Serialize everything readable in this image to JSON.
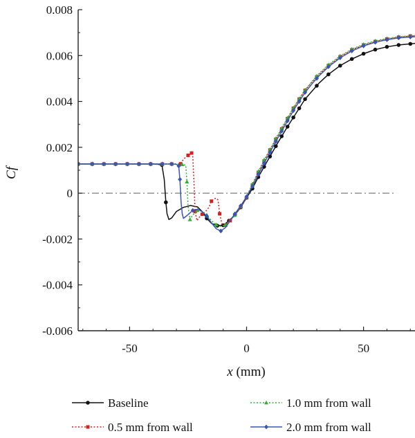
{
  "chart_data": {
    "type": "line",
    "title": "",
    "xlabel_italic": "x",
    "xlabel_unit": " (mm)",
    "ylabel": "Cf",
    "xlim": [
      -72,
      72
    ],
    "ylim": [
      -0.006,
      0.008
    ],
    "xticks": [
      -50,
      0,
      50
    ],
    "xtick_labels": [
      "-50",
      "0",
      "50"
    ],
    "yticks": [
      -0.006,
      -0.004,
      -0.002,
      0,
      0.002,
      0.004,
      0.006,
      0.008
    ],
    "ytick_labels": [
      "-0.006",
      "-0.004",
      "-0.002",
      "0",
      "0.002",
      "0.004",
      "0.006",
      "0.008"
    ],
    "reference_line": {
      "y": 0,
      "x_range": [
        -72,
        64
      ],
      "style": "dash-dot",
      "color": "#888888"
    },
    "legend_position": "bottom",
    "series": [
      {
        "name": "Baseline",
        "color": "#111111",
        "dash": "solid",
        "marker": "circle",
        "x": [
          -72,
          -66,
          -61,
          -56,
          -51,
          -46,
          -41,
          -38,
          -36.2,
          -35.2,
          -34.5,
          -34,
          -33.2,
          -32,
          -30,
          -27,
          -24,
          -21,
          -19,
          -17,
          -15,
          -12.5,
          -10,
          -7.5,
          -5,
          -2.5,
          0,
          2.5,
          5,
          7.5,
          10,
          12.5,
          15,
          17.5,
          20,
          22.5,
          25,
          28,
          31,
          35,
          40,
          45,
          50,
          55,
          60,
          65,
          70,
          72
        ],
        "y": [
          0.00127,
          0.00127,
          0.00127,
          0.00127,
          0.00127,
          0.00127,
          0.00127,
          0.00126,
          0.00123,
          0.0006,
          -0.0004,
          -0.0009,
          -0.00115,
          -0.00108,
          -0.0008,
          -0.00062,
          -0.00054,
          -0.0006,
          -0.0008,
          -0.0011,
          -0.00132,
          -0.00142,
          -0.0014,
          -0.0012,
          -0.00095,
          -0.00062,
          -0.0002,
          0.0002,
          0.0007,
          0.00115,
          0.0016,
          0.00205,
          0.00248,
          0.0029,
          0.0033,
          0.0037,
          0.0041,
          0.00445,
          0.0048,
          0.00518,
          0.00556,
          0.00585,
          0.00608,
          0.00626,
          0.00638,
          0.00646,
          0.00651,
          0.00653
        ],
        "marker_x": [
          -72,
          -66,
          -61,
          -56,
          -51,
          -46,
          -41,
          -36.2,
          -34.5,
          -17,
          -12.5,
          -10,
          -7.5,
          -5,
          -2.5,
          0,
          2.5,
          5,
          7.5,
          10,
          12.5,
          15,
          17.5,
          20,
          22.5,
          25,
          30,
          35,
          40,
          45,
          50,
          55,
          60,
          65,
          70
        ]
      },
      {
        "name": "0.5 mm from wall",
        "color": "#d42020",
        "dash": "dotted",
        "marker": "square",
        "x": [
          -72,
          -66,
          -61,
          -56,
          -51,
          -46,
          -41,
          -36,
          -32,
          -28.2,
          -27,
          -25,
          -23.5,
          -23,
          -22.5,
          -22,
          -21.2,
          -20.2,
          -19,
          -17.5,
          -16,
          -15,
          -14,
          -13,
          -12.2,
          -11.5,
          -10.5,
          -9,
          -7,
          -5,
          -2.5,
          0,
          2.5,
          5,
          7.5,
          10,
          12.5,
          15,
          17.5,
          20,
          22.5,
          25,
          28,
          31,
          35,
          40,
          45,
          50,
          55,
          60,
          65,
          70,
          72
        ],
        "y": [
          0.00127,
          0.00127,
          0.00127,
          0.00127,
          0.00127,
          0.00127,
          0.00127,
          0.00127,
          0.00127,
          0.00128,
          0.00148,
          0.00165,
          0.00175,
          0.0016,
          0.0005,
          -0.0008,
          -0.0012,
          -0.00105,
          -0.00092,
          -0.0008,
          -0.0006,
          -0.00035,
          -0.00025,
          -0.00022,
          -0.0003,
          -0.0009,
          -0.00135,
          -0.0014,
          -0.0012,
          -0.00095,
          -0.0006,
          -0.0002,
          0.00035,
          0.0009,
          0.0014,
          0.00188,
          0.00235,
          0.0028,
          0.00325,
          0.0037,
          0.0041,
          0.00448,
          0.00485,
          0.00518,
          0.00556,
          0.00595,
          0.00625,
          0.00646,
          0.00661,
          0.00672,
          0.0068,
          0.00685,
          0.00686
        ],
        "marker_x": [
          -72,
          -66,
          -61,
          -56,
          -51,
          -46,
          -41,
          -36,
          -32,
          -28.2,
          -25,
          -23.5,
          -22,
          -19,
          -15,
          -11.5,
          -9,
          -7,
          -5,
          -2.5,
          0,
          2.5,
          5,
          7.5,
          10,
          12.5,
          15,
          17.5,
          20,
          22.5,
          25,
          30,
          35,
          40,
          45,
          50,
          55,
          60,
          65,
          70
        ]
      },
      {
        "name": "1.0 mm from wall",
        "color": "#2fb02f",
        "dash": "dotted",
        "marker": "triangle",
        "x": [
          -72,
          -66,
          -61,
          -56,
          -51,
          -46,
          -41,
          -36,
          -32,
          -29,
          -27.5,
          -26,
          -25.5,
          -25,
          -24.2,
          -23,
          -21,
          -19,
          -17,
          -15,
          -13,
          -11,
          -9,
          -7,
          -5,
          -2.5,
          0,
          2.5,
          5,
          7.5,
          10,
          12.5,
          15,
          17.5,
          20,
          22.5,
          25,
          28,
          31,
          35,
          40,
          45,
          50,
          55,
          60,
          65,
          70,
          72
        ],
        "y": [
          0.00127,
          0.00127,
          0.00127,
          0.00127,
          0.00127,
          0.00127,
          0.00127,
          0.00127,
          0.00127,
          0.00128,
          0.00125,
          0.00122,
          0.0005,
          -0.0006,
          -0.00115,
          -0.00095,
          -0.00075,
          -0.0008,
          -0.00095,
          -0.0012,
          -0.00138,
          -0.00145,
          -0.00138,
          -0.0012,
          -0.00095,
          -0.00058,
          -0.00015,
          0.0004,
          0.00095,
          0.00145,
          0.0019,
          0.00238,
          0.00283,
          0.00328,
          0.00372,
          0.00412,
          0.0045,
          0.00488,
          0.00522,
          0.0056,
          0.00598,
          0.00628,
          0.00649,
          0.00664,
          0.00674,
          0.00682,
          0.00686,
          0.00687
        ],
        "marker_x": [
          -72,
          -66,
          -61,
          -56,
          -51,
          -46,
          -41,
          -36,
          -32,
          -27.5,
          -25.5,
          -24.2,
          -21,
          -17,
          -13,
          -9,
          -5,
          -2.5,
          0,
          2.5,
          5,
          7.5,
          10,
          12.5,
          15,
          17.5,
          20,
          22.5,
          25,
          30,
          35,
          40,
          45,
          50,
          55,
          60,
          65,
          70
        ]
      },
      {
        "name": "2.0 mm from wall",
        "color": "#3a55b4",
        "dash": "solid",
        "marker": "diamond",
        "x": [
          -72,
          -66,
          -61,
          -56,
          -51,
          -46,
          -41,
          -36,
          -32,
          -30,
          -29,
          -28.5,
          -28,
          -27.5,
          -27,
          -25.5,
          -23,
          -21,
          -19,
          -17,
          -15,
          -13,
          -11,
          -9,
          -7,
          -5,
          -2.5,
          0,
          2.5,
          5,
          7.5,
          10,
          12.5,
          15,
          17.5,
          20,
          22.5,
          25,
          28,
          31,
          35,
          40,
          45,
          50,
          55,
          60,
          65,
          70,
          72
        ],
        "y": [
          0.00127,
          0.00127,
          0.00127,
          0.00127,
          0.00127,
          0.00127,
          0.00127,
          0.00127,
          0.00127,
          0.00126,
          0.00118,
          0.0006,
          -0.0004,
          -0.0009,
          -0.0011,
          -0.00098,
          -0.00075,
          -0.0007,
          -0.0008,
          -0.001,
          -0.0013,
          -0.00155,
          -0.00165,
          -0.0015,
          -0.0012,
          -0.0009,
          -0.00055,
          -0.00015,
          0.0003,
          0.00082,
          0.0013,
          0.00178,
          0.00225,
          0.0027,
          0.00315,
          0.0036,
          0.004,
          0.00439,
          0.00477,
          0.00512,
          0.00551,
          0.0059,
          0.0062,
          0.00642,
          0.00658,
          0.00669,
          0.00677,
          0.00681,
          0.00682
        ],
        "marker_x": [
          -72,
          -66,
          -61,
          -56,
          -51,
          -46,
          -41,
          -36,
          -32,
          -29,
          -28.5,
          -23,
          -17,
          -11,
          -5,
          -2.5,
          0,
          2.5,
          5,
          7.5,
          10,
          12.5,
          15,
          17.5,
          20,
          22.5,
          25,
          30,
          35,
          40,
          45,
          50,
          55,
          60,
          65,
          70
        ]
      }
    ]
  }
}
